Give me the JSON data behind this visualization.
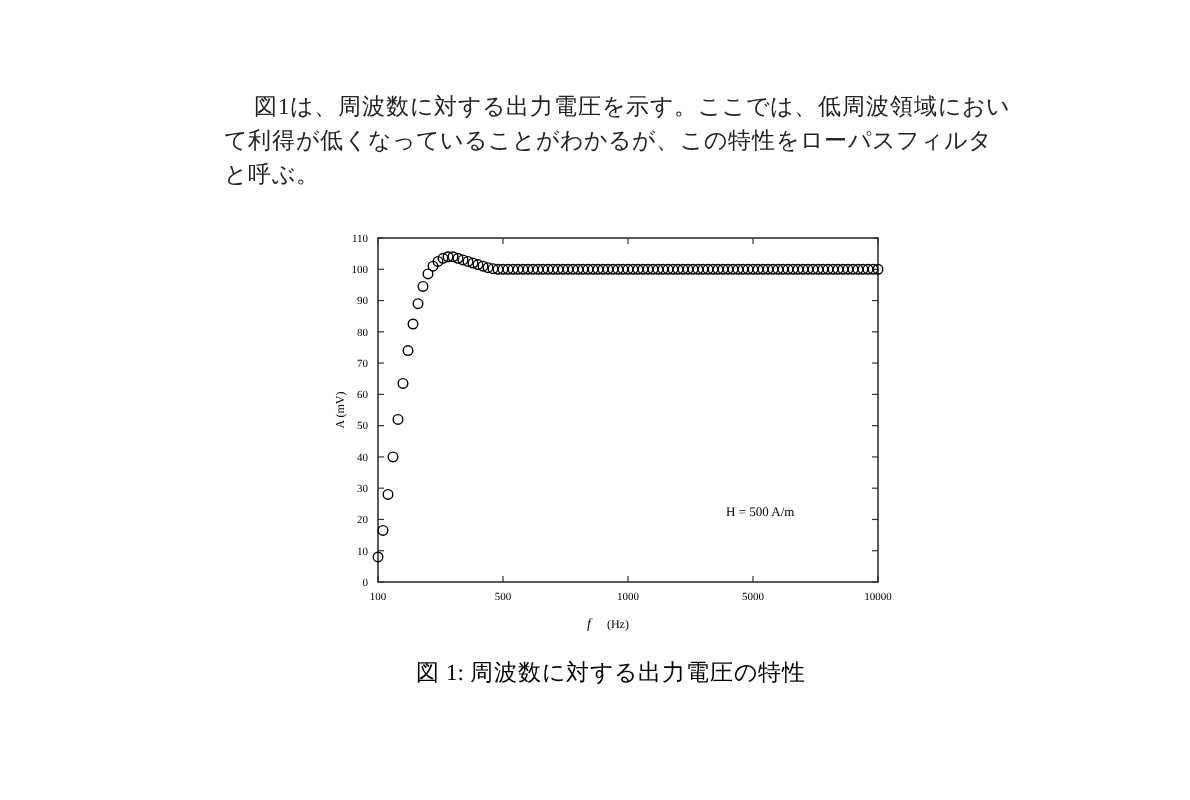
{
  "chart_data": {
    "type": "scatter",
    "title": "図 1: 周波数に対する出力電圧の特性",
    "subtitle": "図1は、周波数に対する出力電圧を示す。ここでは、低周波領域において利得が低くなっていることがわかるが、この特性をローパスフィルタと呼ぶ。",
    "xlabel": "f (Hz)",
    "ylabel": "A (mV)",
    "annotations": [
      "H = 500 A/m"
    ],
    "categories": [
      "100",
      null,
      null,
      null,
      null,
      null,
      null,
      null,
      null,
      null,
      null,
      null,
      null,
      null,
      null,
      null,
      null,
      null,
      null,
      null,
      null,
      null,
      null,
      null,
      null,
      "500",
      null,
      null,
      null,
      null,
      null,
      null,
      null,
      null,
      null,
      null,
      null,
      null,
      null,
      null,
      null,
      null,
      null,
      null,
      null,
      null,
      null,
      null,
      null,
      null,
      "1000",
      null,
      null,
      null,
      null,
      null,
      null,
      null,
      null,
      null,
      null,
      null,
      null,
      null,
      null,
      null,
      null,
      null,
      null,
      null,
      null,
      null,
      null,
      null,
      null,
      "5000",
      null,
      null,
      null,
      null,
      null,
      null,
      null,
      null,
      null,
      null,
      null,
      null,
      null,
      null,
      null,
      null,
      null,
      null,
      null,
      null,
      null,
      null,
      null,
      null,
      "10000"
    ],
    "values": [
      8,
      16.5,
      28,
      40,
      52,
      63.5,
      74,
      82.5,
      89,
      94.5,
      98.5,
      101,
      102.5,
      103.5,
      104,
      104,
      103.5,
      103,
      102.5,
      102,
      101.5,
      101,
      100.5,
      100.2,
      100,
      100,
      100,
      100,
      100,
      100,
      100,
      100,
      100,
      100,
      100,
      100,
      100,
      100,
      100,
      100,
      100,
      100,
      100,
      100,
      100,
      100,
      100,
      100,
      100,
      100,
      100,
      100,
      100,
      100,
      100,
      100,
      100,
      100,
      100,
      100,
      100,
      100,
      100,
      100,
      100,
      100,
      100,
      100,
      100,
      100,
      100,
      100,
      100,
      100,
      100,
      100,
      100,
      100,
      100,
      100,
      100,
      100,
      100,
      100,
      100,
      100,
      100,
      100,
      100,
      100,
      100,
      100,
      100,
      100,
      100,
      100,
      100,
      100,
      100,
      100,
      100
    ],
    "color": "#000000",
    "marker": "circle",
    "ylim": [
      0,
      110
    ],
    "yticks": [
      0,
      10,
      20,
      30,
      40,
      50,
      60,
      70,
      80,
      90,
      100,
      110
    ],
    "grid": false
  }
}
